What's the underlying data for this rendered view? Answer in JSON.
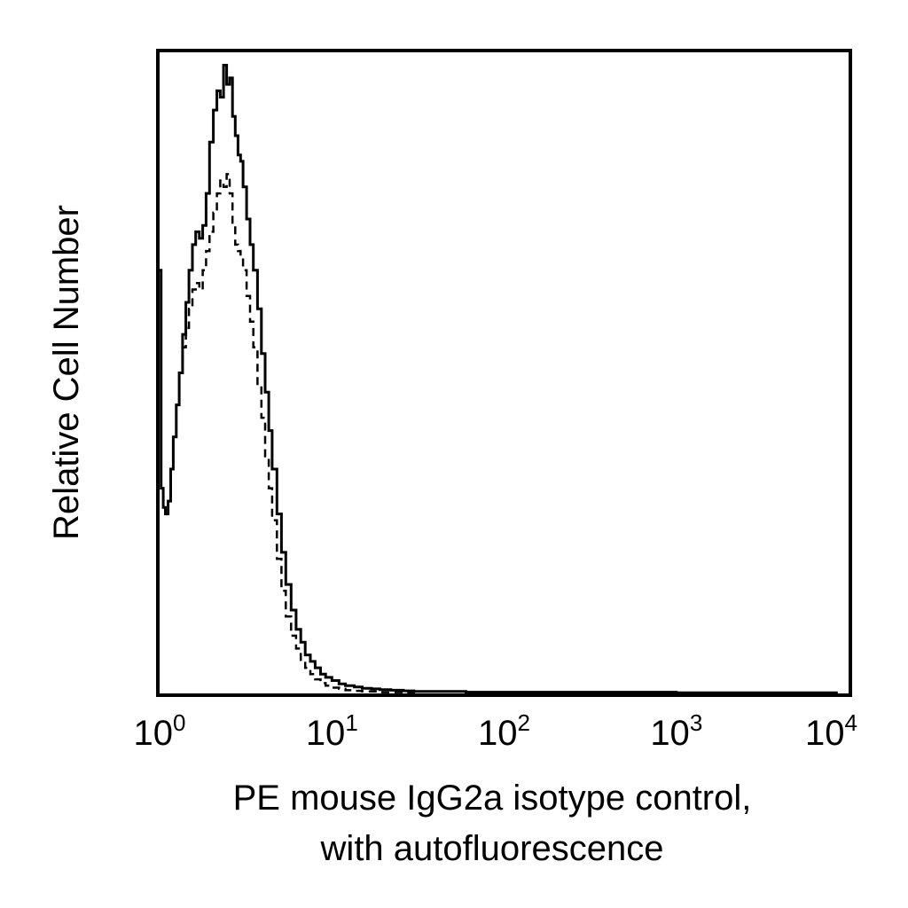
{
  "chart_data": {
    "type": "line",
    "title": "",
    "xlabel_lines": [
      "PE mouse IgG2a isotype control,",
      "with autofluorescence"
    ],
    "ylabel": "Relative Cell Number",
    "x_scale": "log",
    "xlim": [
      1,
      10000
    ],
    "ylim": [
      0,
      1
    ],
    "grid": false,
    "legend": "none",
    "x_ticks": [
      {
        "value": 1,
        "base": "10",
        "exp": "0"
      },
      {
        "value": 10,
        "base": "10",
        "exp": "1"
      },
      {
        "value": 100,
        "base": "10",
        "exp": "2"
      },
      {
        "value": 1000,
        "base": "10",
        "exp": "3"
      },
      {
        "value": 10000,
        "base": "10",
        "exp": "4"
      }
    ],
    "series": [
      {
        "style": "solid",
        "color": "#000000",
        "x": [
          1.0,
          1.02,
          1.05,
          1.08,
          1.12,
          1.16,
          1.2,
          1.25,
          1.3,
          1.36,
          1.42,
          1.48,
          1.55,
          1.62,
          1.7,
          1.78,
          1.86,
          1.95,
          2.05,
          2.15,
          2.25,
          2.35,
          2.45,
          2.55,
          2.65,
          2.75,
          2.85,
          2.95,
          3.05,
          3.2,
          3.35,
          3.5,
          3.7,
          3.9,
          4.1,
          4.3,
          4.5,
          4.8,
          5.1,
          5.4,
          5.8,
          6.2,
          6.6,
          7.0,
          7.5,
          8.0,
          8.6,
          9.2,
          10.0,
          11.0,
          12.0,
          13.5,
          15.0,
          17.0,
          19.0,
          22.0,
          26.0,
          30.0,
          40.0,
          60.0,
          100.0,
          1000.0,
          8500.0
        ],
        "y": [
          0.66,
          0.32,
          0.29,
          0.28,
          0.3,
          0.35,
          0.4,
          0.45,
          0.5,
          0.56,
          0.61,
          0.66,
          0.7,
          0.72,
          0.71,
          0.73,
          0.78,
          0.86,
          0.91,
          0.94,
          0.93,
          0.98,
          0.95,
          0.96,
          0.9,
          0.87,
          0.84,
          0.83,
          0.79,
          0.74,
          0.7,
          0.66,
          0.6,
          0.53,
          0.47,
          0.41,
          0.35,
          0.28,
          0.22,
          0.17,
          0.13,
          0.1,
          0.08,
          0.06,
          0.05,
          0.04,
          0.03,
          0.025,
          0.02,
          0.015,
          0.012,
          0.01,
          0.008,
          0.007,
          0.006,
          0.005,
          0.004,
          0.003,
          0.003,
          0.002,
          0.002,
          0.001,
          0.0
        ]
      },
      {
        "style": "dashed",
        "color": "#000000",
        "x": [
          1.3,
          1.36,
          1.42,
          1.48,
          1.55,
          1.62,
          1.7,
          1.78,
          1.86,
          1.95,
          2.05,
          2.15,
          2.25,
          2.35,
          2.45,
          2.55,
          2.65,
          2.75,
          2.85,
          2.95,
          3.05,
          3.2,
          3.35,
          3.5,
          3.7,
          3.9,
          4.1,
          4.3,
          4.5,
          4.8,
          5.1,
          5.4,
          5.8,
          6.2,
          6.6,
          7.0,
          7.5,
          8.0,
          8.6,
          9.2,
          10.0,
          11.0,
          12.0,
          13.5,
          15.0,
          17.0,
          19.0,
          22.0,
          26.0,
          30.0
        ],
        "y": [
          0.5,
          0.54,
          0.57,
          0.6,
          0.63,
          0.64,
          0.63,
          0.66,
          0.69,
          0.72,
          0.75,
          0.78,
          0.8,
          0.79,
          0.81,
          0.78,
          0.73,
          0.7,
          0.69,
          0.68,
          0.66,
          0.62,
          0.58,
          0.54,
          0.48,
          0.43,
          0.37,
          0.32,
          0.27,
          0.21,
          0.16,
          0.12,
          0.09,
          0.07,
          0.05,
          0.04,
          0.03,
          0.022,
          0.016,
          0.012,
          0.009,
          0.007,
          0.005,
          0.004,
          0.003,
          0.003,
          0.002,
          0.002,
          0.001,
          0.0
        ]
      }
    ]
  }
}
